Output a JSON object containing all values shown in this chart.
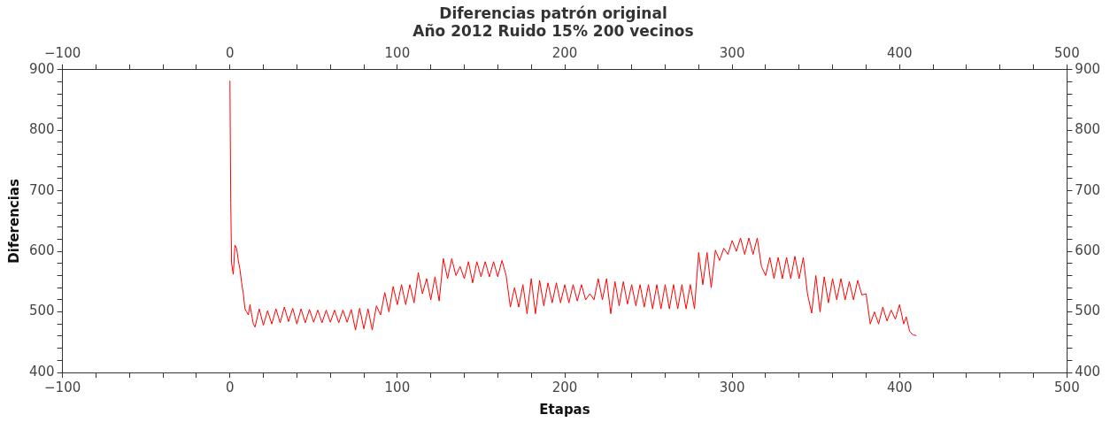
{
  "chart_data": {
    "type": "line",
    "title": "Diferencias patrón original",
    "subtitle": "Año 2012 Ruido 15% 200 vecinos",
    "xlabel": "Etapas",
    "ylabel": "Diferencias",
    "x": [
      0,
      0.5,
      1,
      2,
      3,
      4,
      5,
      6,
      7,
      8,
      9,
      10,
      11,
      12,
      13,
      14,
      15,
      17.5,
      20,
      22.5,
      25,
      27.5,
      30,
      32.5,
      35,
      37.5,
      40,
      42.5,
      45,
      47.5,
      50,
      52.5,
      55,
      57.5,
      60,
      62.5,
      65,
      67.5,
      70,
      72.5,
      75,
      77.5,
      80,
      82.5,
      85,
      87.5,
      90,
      92.5,
      95,
      97.5,
      100,
      102.5,
      105,
      107.5,
      110,
      112.5,
      115,
      117.5,
      120,
      122.5,
      125,
      127.5,
      130,
      132.5,
      135,
      137.5,
      140,
      142.5,
      145,
      147.5,
      150,
      152.5,
      155,
      157.5,
      160,
      162.5,
      165,
      167.5,
      170,
      172.5,
      175,
      177.5,
      180,
      182.5,
      185,
      187.5,
      190,
      192.5,
      195,
      197.5,
      200,
      202.5,
      205,
      207.5,
      210,
      212.5,
      215,
      217.5,
      220,
      222.5,
      225,
      227.5,
      230,
      232.5,
      235,
      237.5,
      240,
      242.5,
      245,
      247.5,
      250,
      252.5,
      255,
      257.5,
      260,
      262.5,
      265,
      267.5,
      270,
      272.5,
      275,
      277.5,
      280,
      282.5,
      285,
      287.5,
      290,
      292.5,
      295,
      297.5,
      300,
      302.5,
      305,
      307.5,
      310,
      312.5,
      315,
      317.5,
      320,
      322.5,
      325,
      327.5,
      330,
      332.5,
      335,
      337.5,
      340,
      342.5,
      345,
      347.5,
      350,
      352.5,
      355,
      357.5,
      360,
      362.5,
      365,
      367.5,
      370,
      372.5,
      375,
      377.5,
      380,
      382.5,
      385,
      387.5,
      390,
      392.5,
      395,
      397.5,
      400,
      402.5,
      404,
      406,
      408,
      410
    ],
    "series": [
      {
        "color": "#ff0000",
        "values": [
          882,
          680,
          580,
          562,
          610,
          605,
          585,
          570,
          548,
          530,
          505,
          500,
          495,
          512,
          495,
          480,
          475,
          505,
          478,
          502,
          480,
          505,
          482,
          508,
          484,
          506,
          480,
          505,
          482,
          504,
          483,
          503,
          482,
          503,
          483,
          503,
          482,
          503,
          483,
          504,
          470,
          506,
          472,
          505,
          470,
          510,
          495,
          532,
          500,
          542,
          512,
          545,
          512,
          545,
          515,
          565,
          530,
          555,
          520,
          558,
          518,
          588,
          555,
          588,
          560,
          575,
          555,
          583,
          548,
          583,
          558,
          583,
          558,
          583,
          558,
          585,
          560,
          508,
          540,
          508,
          545,
          497,
          555,
          497,
          552,
          510,
          548,
          515,
          548,
          515,
          545,
          515,
          545,
          518,
          545,
          520,
          530,
          520,
          555,
          520,
          555,
          497,
          550,
          510,
          550,
          513,
          545,
          510,
          545,
          508,
          545,
          505,
          545,
          505,
          545,
          505,
          545,
          505,
          545,
          505,
          545,
          505,
          598,
          545,
          598,
          540,
          602,
          585,
          605,
          595,
          618,
          600,
          622,
          595,
          622,
          595,
          622,
          575,
          560,
          590,
          555,
          590,
          555,
          590,
          555,
          592,
          555,
          590,
          530,
          498,
          560,
          500,
          558,
          515,
          555,
          520,
          555,
          520,
          550,
          520,
          552,
          528,
          530,
          480,
          500,
          480,
          508,
          485,
          503,
          488,
          512,
          480,
          492,
          468,
          462,
          461
        ]
      }
    ],
    "xlim": [
      -100,
      500
    ],
    "ylim": [
      400,
      900
    ],
    "xticks": [
      -100,
      {
        "value": -80,
        "label": null
      },
      {
        "value": -60,
        "label": null
      },
      {
        "value": -40,
        "label": null
      },
      {
        "value": -20,
        "label": null
      },
      0,
      {
        "value": 20,
        "label": null
      },
      {
        "value": 40,
        "label": null
      },
      {
        "value": 60,
        "label": null
      },
      {
        "value": 80,
        "label": null
      },
      100,
      {
        "value": 120,
        "label": null
      },
      {
        "value": 140,
        "label": null
      },
      {
        "value": 160,
        "label": null
      },
      {
        "value": 180,
        "label": null
      },
      200,
      {
        "value": 220,
        "label": null
      },
      {
        "value": 240,
        "label": null
      },
      {
        "value": 260,
        "label": null
      },
      {
        "value": 280,
        "label": null
      },
      300,
      {
        "value": 320,
        "label": null
      },
      {
        "value": 340,
        "label": null
      },
      {
        "value": 360,
        "label": null
      },
      {
        "value": 380,
        "label": null
      },
      400,
      {
        "value": 420,
        "label": null
      },
      {
        "value": 440,
        "label": null
      },
      {
        "value": 460,
        "label": null
      },
      {
        "value": 480,
        "label": null
      },
      500
    ],
    "x2lim": [
      -100,
      500
    ],
    "x2ticks": [
      -100,
      {
        "value": -80,
        "label": null
      },
      {
        "value": -60,
        "label": null
      },
      {
        "value": -40,
        "label": null
      },
      {
        "value": -20,
        "label": null
      },
      0,
      {
        "value": 20,
        "label": null
      },
      {
        "value": 40,
        "label": null
      },
      {
        "value": 60,
        "label": null
      },
      {
        "value": 80,
        "label": null
      },
      100,
      {
        "value": 120,
        "label": null
      },
      {
        "value": 140,
        "label": null
      },
      {
        "value": 160,
        "label": null
      },
      {
        "value": 180,
        "label": null
      },
      200,
      {
        "value": 220,
        "label": null
      },
      {
        "value": 240,
        "label": null
      },
      {
        "value": 260,
        "label": null
      },
      {
        "value": 280,
        "label": null
      },
      300,
      {
        "value": 320,
        "label": null
      },
      {
        "value": 340,
        "label": null
      },
      {
        "value": 360,
        "label": null
      },
      {
        "value": 380,
        "label": null
      },
      400,
      {
        "value": 420,
        "label": null
      },
      {
        "value": 440,
        "label": null
      },
      {
        "value": 460,
        "label": null
      },
      {
        "value": 480,
        "label": null
      },
      500
    ],
    "yticks": [
      400,
      {
        "value": 420,
        "label": null
      },
      {
        "value": 440,
        "label": null
      },
      {
        "value": 460,
        "label": null
      },
      {
        "value": 480,
        "label": null
      },
      500,
      {
        "value": 520,
        "label": null
      },
      {
        "value": 540,
        "label": null
      },
      {
        "value": 560,
        "label": null
      },
      {
        "value": 580,
        "label": null
      },
      600,
      {
        "value": 620,
        "label": null
      },
      {
        "value": 640,
        "label": null
      },
      {
        "value": 660,
        "label": null
      },
      {
        "value": 680,
        "label": null
      },
      700,
      {
        "value": 720,
        "label": null
      },
      {
        "value": 740,
        "label": null
      },
      {
        "value": 760,
        "label": null
      },
      {
        "value": 780,
        "label": null
      },
      800,
      {
        "value": 820,
        "label": null
      },
      {
        "value": 840,
        "label": null
      },
      {
        "value": 860,
        "label": null
      },
      {
        "value": 880,
        "label": null
      },
      900
    ],
    "y2lim": [
      400,
      900
    ],
    "y2ticks": [
      400,
      {
        "value": 420,
        "label": null
      },
      {
        "value": 440,
        "label": null
      },
      {
        "value": 460,
        "label": null
      },
      {
        "value": 480,
        "label": null
      },
      500,
      {
        "value": 520,
        "label": null
      },
      {
        "value": 540,
        "label": null
      },
      {
        "value": 560,
        "label": null
      },
      {
        "value": 580,
        "label": null
      },
      600,
      {
        "value": 620,
        "label": null
      },
      {
        "value": 640,
        "label": null
      },
      {
        "value": 660,
        "label": null
      },
      {
        "value": 680,
        "label": null
      },
      700,
      {
        "value": 720,
        "label": null
      },
      {
        "value": 740,
        "label": null
      },
      {
        "value": 760,
        "label": null
      },
      {
        "value": 780,
        "label": null
      },
      800,
      {
        "value": 820,
        "label": null
      },
      {
        "value": 840,
        "label": null
      },
      {
        "value": 860,
        "label": null
      },
      {
        "value": 880,
        "label": null
      },
      900
    ],
    "grid": false,
    "legend": false,
    "marker": "none",
    "line_style": "solid"
  }
}
